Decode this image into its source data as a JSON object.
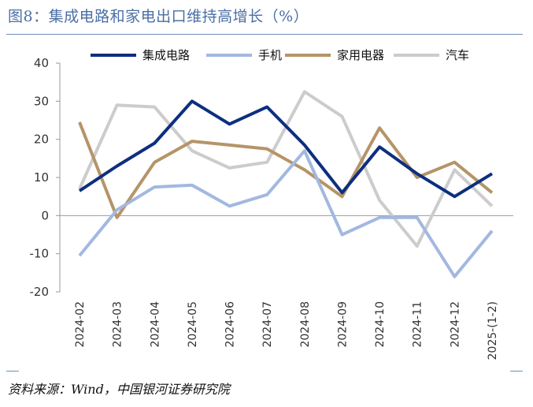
{
  "figure": {
    "title": "图8：集成电路和家电出口维持高增长（%）",
    "source": "资料来源：Wind，中国银河证券研究院"
  },
  "chart_data": {
    "type": "line",
    "title": "集成电路和家电出口维持高增长（%）",
    "xlabel": "",
    "ylabel": "",
    "ylim": [
      -20,
      40
    ],
    "yticks": [
      40,
      30,
      20,
      10,
      0,
      -10,
      -20
    ],
    "categories": [
      "2024-02",
      "2024-03",
      "2024-04",
      "2024-05",
      "2024-06",
      "2024-07",
      "2024-08",
      "2024-09",
      "2024-10",
      "2024-11",
      "2024-12",
      "2025-(1-2)"
    ],
    "legend_position": "top",
    "series": [
      {
        "name": "集成电路",
        "color": "#0d2f80",
        "values": [
          6.5,
          13,
          19,
          30,
          24,
          28.5,
          18.5,
          6,
          18,
          11,
          5,
          11
        ]
      },
      {
        "name": "手机",
        "color": "#a3b8e0",
        "values": [
          -10.5,
          1.5,
          7.5,
          8,
          2.5,
          5.5,
          17,
          -5,
          -0.5,
          -0.5,
          -16,
          -4
        ]
      },
      {
        "name": "家用电器",
        "color": "#b59467",
        "values": [
          24.5,
          -0.5,
          14,
          19.5,
          18.5,
          17.5,
          12,
          5,
          23,
          10,
          14,
          6
        ]
      },
      {
        "name": "汽车",
        "color": "#cccccc",
        "values": [
          7,
          29,
          28.5,
          17,
          12.5,
          14,
          32.5,
          26,
          4,
          -8,
          12,
          2.5
        ]
      }
    ]
  }
}
